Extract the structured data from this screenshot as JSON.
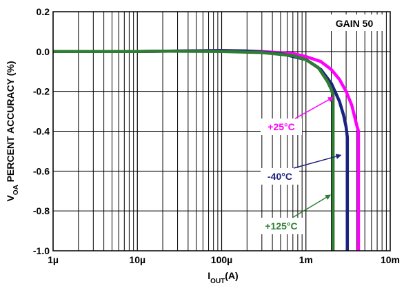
{
  "chart_data": {
    "type": "line",
    "title": "",
    "xlabel": "I",
    "xlabel_sub": "OUT",
    "xlabel_unit": "(A)",
    "ylabel_pre": "V",
    "ylabel_sub": "OA",
    "ylabel_post": " PERCENT ACCURACY (%)",
    "x_scale": "log",
    "xlim": [
      1e-06,
      0.01
    ],
    "ylim": [
      -1.0,
      0.2
    ],
    "grid": true,
    "x_ticks": [
      {
        "value": 1e-06,
        "label": "1µ"
      },
      {
        "value": 1e-05,
        "label": "10µ"
      },
      {
        "value": 0.0001,
        "label": "100µ"
      },
      {
        "value": 0.001,
        "label": "1m"
      },
      {
        "value": 0.01,
        "label": "10m"
      }
    ],
    "y_ticks": [
      {
        "value": 0.2,
        "label": "0.2"
      },
      {
        "value": 0.0,
        "label": "0.0"
      },
      {
        "value": -0.2,
        "label": "-0.2"
      },
      {
        "value": -0.4,
        "label": "-0.4"
      },
      {
        "value": -0.6,
        "label": "-0.6"
      },
      {
        "value": -0.8,
        "label": "-0.8"
      },
      {
        "value": -1.0,
        "label": "-1.0"
      }
    ],
    "annotation": "GAIN 50",
    "series": [
      {
        "name": "+25°C",
        "color": "#ff00ff",
        "x": [
          1e-06,
          1e-05,
          0.0001,
          0.0003,
          0.0007,
          0.001,
          0.0015,
          0.002,
          0.0025,
          0.003,
          0.0035,
          0.0038,
          0.004,
          0.0042,
          0.0042
        ],
        "y": [
          0.0,
          0.0,
          0.005,
          0.0,
          -0.01,
          -0.025,
          -0.05,
          -0.09,
          -0.14,
          -0.2,
          -0.27,
          -0.33,
          -0.37,
          -0.4,
          -1.0
        ]
      },
      {
        "name": "-40°C",
        "color": "#1a237e",
        "x": [
          1e-06,
          1e-05,
          0.0001,
          0.0002,
          0.0005,
          0.001,
          0.0015,
          0.002,
          0.0025,
          0.0028,
          0.003,
          0.0031,
          0.0031
        ],
        "y": [
          0.0,
          0.0,
          0.005,
          0.003,
          -0.01,
          -0.04,
          -0.09,
          -0.16,
          -0.25,
          -0.32,
          -0.38,
          -0.43,
          -1.0
        ]
      },
      {
        "name": "+125°C",
        "color": "#2e7d32",
        "x": [
          1e-06,
          1e-05,
          2e-05,
          0.0001,
          0.0003,
          0.0007,
          0.001,
          0.0014,
          0.0018,
          0.002,
          0.0021,
          0.0021
        ],
        "y": [
          0.0,
          0.0,
          0.002,
          0.0,
          -0.005,
          -0.02,
          -0.04,
          -0.08,
          -0.15,
          -0.19,
          -0.22,
          -1.0
        ]
      }
    ],
    "labels": [
      {
        "text": "+25°C",
        "series": 0,
        "arrow_to": {
          "x": 0.0021,
          "y": -0.23
        }
      },
      {
        "text": "-40°C",
        "series": 1,
        "arrow_to": {
          "x": 0.0026,
          "y": -0.52
        }
      },
      {
        "text": "+125°C",
        "series": 2,
        "arrow_to": {
          "x": 0.00195,
          "y": -0.72
        }
      }
    ]
  }
}
